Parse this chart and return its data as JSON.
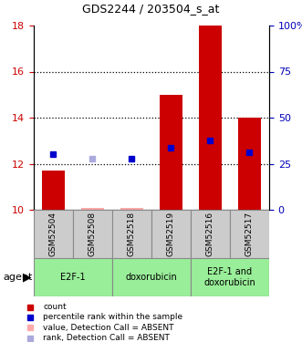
{
  "title": "GDS2244 / 203504_s_at",
  "samples": [
    "GSM52504",
    "GSM52508",
    "GSM52518",
    "GSM52519",
    "GSM52516",
    "GSM52517"
  ],
  "bar_bottoms": [
    10,
    10,
    10,
    10,
    10,
    10
  ],
  "bar_tops": [
    11.7,
    10.08,
    10.08,
    15.0,
    18.0,
    14.0
  ],
  "bar_color": "#cc0000",
  "bar_absent_color": "#ffaaaa",
  "blue_values": [
    12.4,
    null,
    12.2,
    12.7,
    13.0,
    12.5
  ],
  "blue_absent_values": [
    null,
    12.2,
    null,
    null,
    null,
    null
  ],
  "blue_color": "#0000cc",
  "blue_absent_color": "#aaaadd",
  "ylim_left": [
    10,
    18
  ],
  "ylim_right": [
    0,
    100
  ],
  "yticks_left": [
    10,
    12,
    14,
    16,
    18
  ],
  "yticks_right": [
    0,
    25,
    50,
    75,
    100
  ],
  "ytick_labels_right": [
    "0",
    "25",
    "50",
    "75",
    "100%"
  ],
  "grid_lines": [
    12,
    14,
    16
  ],
  "groups": [
    {
      "label": "E2F-1",
      "start": 0,
      "end": 2,
      "color": "#99ee99"
    },
    {
      "label": "doxorubicin",
      "start": 2,
      "end": 4,
      "color": "#99ee99"
    },
    {
      "label": "E2F-1 and\ndoxorubicin",
      "start": 4,
      "end": 6,
      "color": "#99ee99"
    }
  ],
  "agent_label": "agent",
  "legend_colors": [
    "#cc0000",
    "#0000cc",
    "#ffaaaa",
    "#aaaadd"
  ],
  "legend_labels": [
    "count",
    "percentile rank within the sample",
    "value, Detection Call = ABSENT",
    "rank, Detection Call = ABSENT"
  ],
  "absent_bars": [
    false,
    true,
    true,
    false,
    false,
    false
  ],
  "tick_label_color_left": "#cc0000",
  "tick_label_color_right": "#0000bb",
  "sample_bg": "#cccccc",
  "plot_xlim": [
    -0.5,
    5.5
  ]
}
